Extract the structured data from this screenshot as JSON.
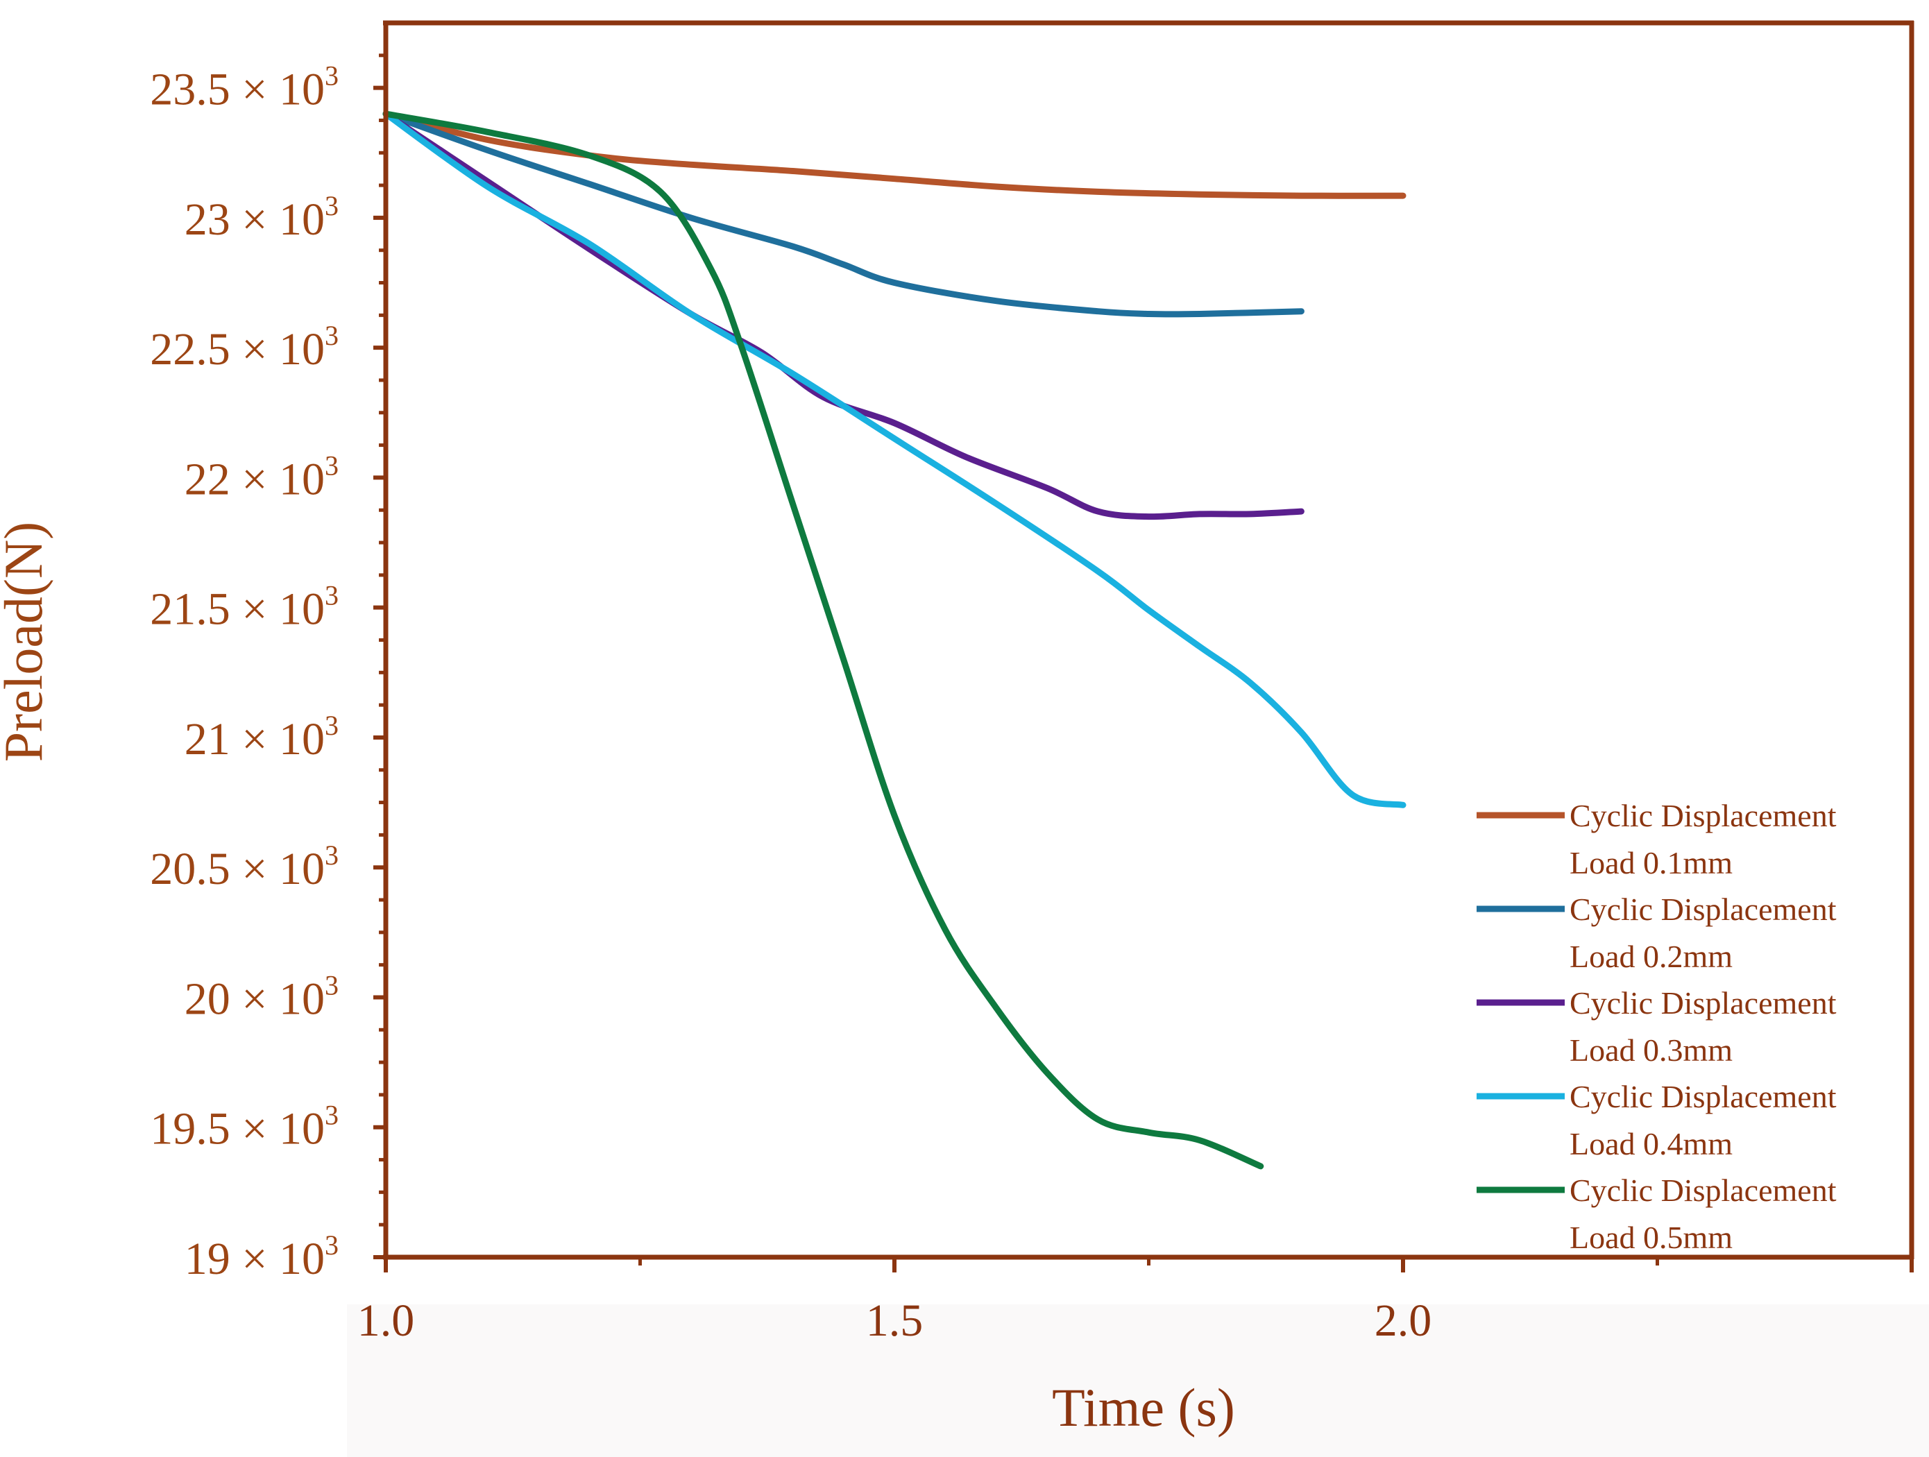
{
  "chart_data": {
    "type": "line",
    "title": "",
    "xlabel": "Time (s)",
    "ylabel": "Preload(N)",
    "xlim": [
      1.0,
      2.5
    ],
    "ylim": [
      19000,
      23750
    ],
    "x_ticks": [
      1.0,
      1.5,
      2.0
    ],
    "x_tick_labels": [
      "1.0",
      "1.5",
      "2.0"
    ],
    "y_ticks": [
      19000,
      19500,
      20000,
      20500,
      21000,
      21500,
      22000,
      22500,
      23000,
      23500
    ],
    "y_tick_labels": [
      {
        "mantissa": "19",
        "suffix": " × 10",
        "exp": "3"
      },
      {
        "mantissa": "19.5",
        "suffix": " × 10",
        "exp": "3"
      },
      {
        "mantissa": "20",
        "suffix": " × 10",
        "exp": "3"
      },
      {
        "mantissa": "20.5",
        "suffix": " × 10",
        "exp": "3"
      },
      {
        "mantissa": "21",
        "suffix": " × 10",
        "exp": "3"
      },
      {
        "mantissa": "21.5",
        "suffix": " × 10",
        "exp": "3"
      },
      {
        "mantissa": "22",
        "suffix": " × 10",
        "exp": "3"
      },
      {
        "mantissa": "22.5",
        "suffix": " × 10",
        "exp": "3"
      },
      {
        "mantissa": "23",
        "suffix": " × 10",
        "exp": "3"
      },
      {
        "mantissa": "23.5",
        "suffix": " × 10",
        "exp": "3"
      }
    ],
    "grid": false,
    "legend_position": "bottom-right",
    "series": [
      {
        "name_line1": "Cyclic Displacement",
        "name_line2": "Load 0.1mm",
        "color": "#b5542a",
        "x": [
          1.0,
          1.1,
          1.2,
          1.28,
          1.4,
          1.5,
          1.6,
          1.7,
          1.8,
          1.9,
          2.0
        ],
        "y": [
          23400,
          23300,
          23240,
          23210,
          23180,
          23150,
          23120,
          23100,
          23090,
          23085,
          23085
        ]
      },
      {
        "name_line1": "Cyclic Displacement",
        "name_line2": "Load 0.2mm",
        "color": "#1f6f9c",
        "x": [
          1.0,
          1.1,
          1.2,
          1.3,
          1.4,
          1.45,
          1.5,
          1.6,
          1.7,
          1.75,
          1.8,
          1.9
        ],
        "y": [
          23400,
          23260,
          23130,
          23000,
          22890,
          22820,
          22750,
          22680,
          22640,
          22630,
          22630,
          22640
        ]
      },
      {
        "name_line1": "Cyclic Displacement",
        "name_line2": "Load 0.3mm",
        "color": "#5a1f8e",
        "x": [
          1.0,
          1.1,
          1.2,
          1.3,
          1.37,
          1.43,
          1.5,
          1.57,
          1.65,
          1.7,
          1.75,
          1.8,
          1.85,
          1.9
        ],
        "y": [
          23400,
          23140,
          22880,
          22630,
          22480,
          22310,
          22210,
          22080,
          21960,
          21870,
          21850,
          21860,
          21860,
          21870
        ]
      },
      {
        "name_line1": "Cyclic Displacement",
        "name_line2": "Load 0.4mm",
        "color": "#1ab1e0",
        "x": [
          1.0,
          1.1,
          1.2,
          1.3,
          1.4,
          1.5,
          1.6,
          1.7,
          1.75,
          1.8,
          1.85,
          1.9,
          1.95,
          2.0
        ],
        "y": [
          23400,
          23120,
          22900,
          22630,
          22400,
          22150,
          21900,
          21640,
          21490,
          21350,
          21210,
          21020,
          20780,
          20740
        ]
      },
      {
        "name_line1": "Cyclic Displacement",
        "name_line2": "Load 0.5mm",
        "color": "#0e7a3f",
        "x": [
          1.0,
          1.1,
          1.2,
          1.27,
          1.32,
          1.35,
          1.4,
          1.45,
          1.5,
          1.55,
          1.6,
          1.65,
          1.7,
          1.75,
          1.8,
          1.86
        ],
        "y": [
          23400,
          23330,
          23240,
          23100,
          22800,
          22500,
          21900,
          21300,
          20700,
          20260,
          19960,
          19710,
          19530,
          19480,
          19450,
          19350
        ]
      }
    ]
  }
}
